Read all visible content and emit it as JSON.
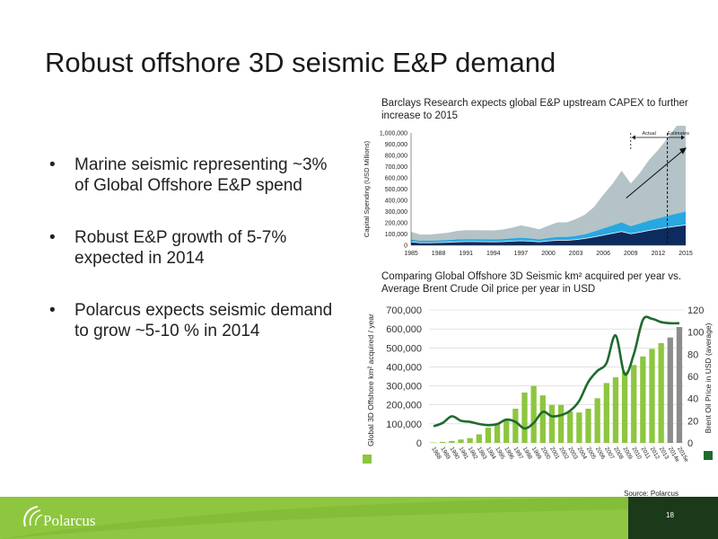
{
  "slide": {
    "title": "Robust offshore 3D seismic E&P demand",
    "page_number": "18",
    "source": "Source: Polarcus",
    "logo_text": "Polarcus",
    "bullets": [
      "Marine seismic representing ~3% of Global Offshore E&P spend",
      "Robust E&P growth of 5-7% expected in 2014",
      "Polarcus expects seismic demand to grow ~5-10 % in 2014"
    ],
    "bullet_glyph": "•"
  },
  "colors": {
    "green_footer": "#8ec63f",
    "bar_green": "#8dc63f",
    "bar_grey": "#8c8c8c",
    "oil_line": "#1e6b2e",
    "area_grey": "#b4c3c8",
    "area_cyan": "#28a8e0",
    "area_navy": "#0d2b5e"
  },
  "chart_data": [
    {
      "type": "area",
      "caption": "Barclays Research expects global E&P upstream CAPEX to further increase to 2015",
      "ylabel": "Capital Spending (USD Millions)",
      "ylim": [
        0,
        1000000
      ],
      "yticks": [
        "0",
        "100,000",
        "200,000",
        "300,000",
        "400,000",
        "500,000",
        "600,000",
        "700,000",
        "800,000",
        "900,000",
        "1,000,000"
      ],
      "xticks": [
        "1985",
        "1988",
        "1991",
        "1994",
        "1997",
        "2000",
        "2003",
        "2006",
        "2009",
        "2012",
        "2015"
      ],
      "x": [
        1985,
        1986,
        1987,
        1988,
        1989,
        1990,
        1991,
        1992,
        1993,
        1994,
        1995,
        1996,
        1997,
        1998,
        1999,
        2000,
        2001,
        2002,
        2003,
        2004,
        2005,
        2006,
        2007,
        2008,
        2009,
        2010,
        2011,
        2012,
        2013,
        2014,
        2015
      ],
      "annotations": [
        "Actual",
        "Estimates"
      ],
      "estimate_start": 2013,
      "series": [
        {
          "values": [
            70000,
            55000,
            55000,
            60000,
            65000,
            75000,
            80000,
            80000,
            80000,
            80000,
            85000,
            95000,
            110000,
            100000,
            90000,
            110000,
            130000,
            130000,
            150000,
            175000,
            220000,
            300000,
            370000,
            460000,
            380000,
            450000,
            540000,
            610000,
            690000,
            780000,
            860000
          ]
        },
        {
          "values": [
            20000,
            18000,
            18000,
            19000,
            20000,
            22000,
            22000,
            22000,
            22000,
            22000,
            23000,
            25000,
            27000,
            25000,
            22000,
            26000,
            30000,
            30000,
            33000,
            38000,
            48000,
            60000,
            70000,
            82000,
            68000,
            78000,
            88000,
            95000,
            103000,
            112000,
            120000
          ]
        },
        {
          "values": [
            30000,
            22000,
            22000,
            24000,
            26000,
            30000,
            32000,
            32000,
            31000,
            30000,
            32000,
            36000,
            40000,
            36000,
            30000,
            38000,
            44000,
            44000,
            50000,
            60000,
            74000,
            90000,
            106000,
            122000,
            102000,
            116000,
            132000,
            145000,
            158000,
            170000,
            180000
          ]
        }
      ]
    },
    {
      "type": "bar",
      "caption": "Comparing Global Offshore 3D Seismic km² acquired per year vs. Average Brent Crude Oil price per year in USD",
      "ylabel": "Global 3D Offshore km² acquired / year",
      "y2label": "Brent Oil Price in USD (average)",
      "ylim": [
        0,
        700000
      ],
      "y2lim": [
        0,
        120
      ],
      "yticks": [
        "0",
        "100,000",
        "200,000",
        "300,000",
        "400,000",
        "500,000",
        "600,000",
        "700,000"
      ],
      "y2ticks": [
        "0",
        "20",
        "40",
        "60",
        "80",
        "100",
        "120"
      ],
      "categories": [
        "1988",
        "1989",
        "1990",
        "1991",
        "1992",
        "1993",
        "1994",
        "1995",
        "1996",
        "1997",
        "1998",
        "1999",
        "2000",
        "2001",
        "2002",
        "2003",
        "2004",
        "2005",
        "2006",
        "2007",
        "2008",
        "2009",
        "2010",
        "2011",
        "2012",
        "2013",
        "2014e",
        "2015e"
      ],
      "series": [
        {
          "type": "bar",
          "values": [
            2000,
            5000,
            10000,
            18000,
            25000,
            45000,
            80000,
            100000,
            125000,
            180000,
            265000,
            300000,
            250000,
            200000,
            200000,
            165000,
            160000,
            180000,
            235000,
            315000,
            345000,
            375000,
            410000,
            455000,
            495000,
            525000,
            555000,
            610000
          ]
        },
        {
          "type": "line",
          "values": [
            15,
            18,
            24,
            20,
            19,
            17,
            16,
            17,
            21,
            19,
            13,
            18,
            28,
            24,
            25,
            29,
            38,
            55,
            65,
            72,
            97,
            62,
            80,
            111,
            112,
            109,
            108,
            108
          ]
        }
      ]
    }
  ]
}
